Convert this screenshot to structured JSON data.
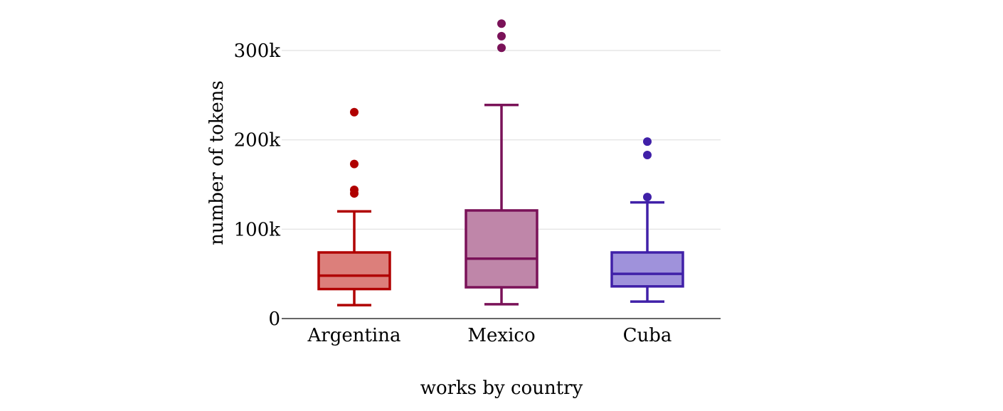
{
  "chart_data": {
    "type": "box",
    "xlabel": "works by country",
    "ylabel": "number of tokens",
    "ylim": [
      0,
      340000
    ],
    "yticks": [
      0,
      100000,
      200000,
      300000
    ],
    "ytick_labels": [
      "0",
      "100k",
      "200k",
      "300k"
    ],
    "grid": "horizontal",
    "series": [
      {
        "name": "Argentina",
        "color": "#b00000",
        "fill": "#dc7f7b",
        "whisker_low": 15000,
        "q1": 33000,
        "median": 48000,
        "q3": 74000,
        "whisker_high": 120000,
        "outliers": [
          140000,
          144000,
          173000,
          231000
        ]
      },
      {
        "name": "Mexico",
        "color": "#7a1258",
        "fill": "#bf86a9",
        "whisker_low": 16000,
        "q1": 35000,
        "median": 67000,
        "q3": 121000,
        "whisker_high": 239000,
        "outliers": [
          303000,
          316000,
          330000
        ]
      },
      {
        "name": "Cuba",
        "color": "#4020a8",
        "fill": "#9f92db",
        "whisker_low": 19000,
        "q1": 36000,
        "median": 50000,
        "q3": 74000,
        "whisker_high": 130000,
        "outliers": [
          136000,
          183000,
          198000
        ]
      }
    ]
  }
}
